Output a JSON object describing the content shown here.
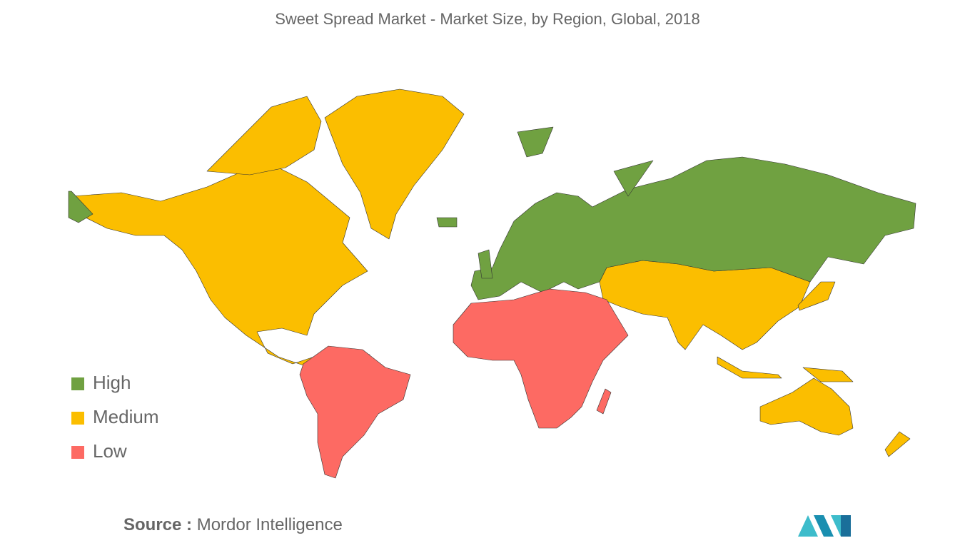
{
  "title": "Sweet Spread Market - Market Size, by Region, Global, 2018",
  "legend": [
    {
      "name": "High",
      "color": "#70a141"
    },
    {
      "name": "Medium",
      "color": "#fbbe00"
    },
    {
      "name": "Low",
      "color": "#fd6a63"
    }
  ],
  "source": {
    "label": "Source :",
    "text": "Mordor Intelligence"
  }
}
